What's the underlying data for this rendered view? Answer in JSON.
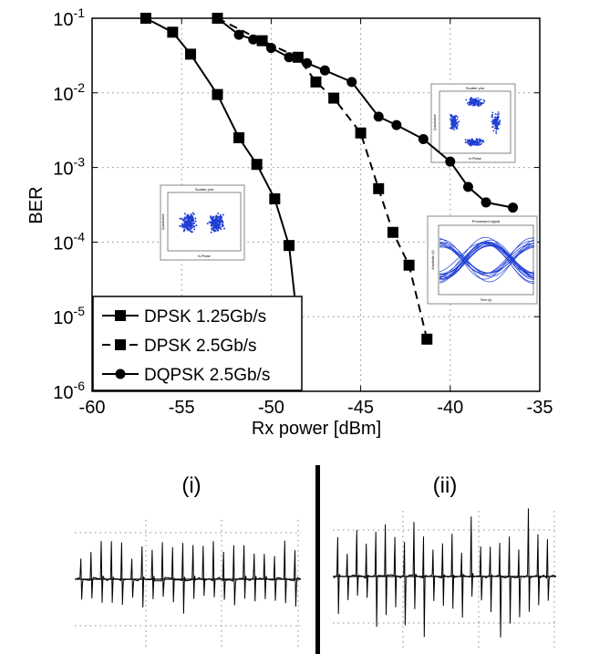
{
  "chart_data": {
    "type": "line",
    "xlabel": "Rx power [dBm]",
    "ylabel": "BER",
    "xlim": [
      -60,
      -35
    ],
    "ylim_log10": [
      -6,
      -1
    ],
    "yscale": "log",
    "grid": true,
    "legend_position": "bottom-left",
    "x_ticks": [
      "-60",
      "-55",
      "-50",
      "-45",
      "-40",
      "-35"
    ],
    "y_tick_exponents": [
      "-1",
      "-2",
      "-3",
      "-4",
      "-5",
      "-6"
    ],
    "y_tick_base": "10",
    "series": [
      {
        "name": "DPSK 1.25Gb/s",
        "line": "solid",
        "marker": "square",
        "x": [
          -57,
          -55.5,
          -54.5,
          -53,
          -51.8,
          -50.8,
          -49.8,
          -49,
          -48.6
        ],
        "y": [
          0.1,
          0.065,
          0.033,
          0.0095,
          0.0025,
          0.0011,
          0.00038,
          9e-05,
          1.2e-05
        ]
      },
      {
        "name": "DPSK 2.5Gb/s",
        "line": "dashed",
        "marker": "square",
        "x": [
          -53,
          -50.5,
          -48.5,
          -47.5,
          -46.5,
          -45,
          -44,
          -43.2,
          -42.3,
          -41.3
        ],
        "y": [
          0.1,
          0.05,
          0.03,
          0.014,
          0.0085,
          0.0029,
          0.00052,
          0.000135,
          4.9e-05,
          5e-06
        ]
      },
      {
        "name": "DQPSK 2.5Gb/s",
        "line": "solid",
        "marker": "circle",
        "x": [
          -53,
          -51.8,
          -51,
          -50,
          -49,
          -48,
          -47,
          -45.5,
          -44,
          -43,
          -41.5,
          -40,
          -39,
          -38,
          -36.5
        ],
        "y": [
          0.1,
          0.06,
          0.052,
          0.04,
          0.03,
          0.025,
          0.02,
          0.014,
          0.0048,
          0.0037,
          0.0024,
          0.0012,
          0.00055,
          0.00034,
          0.00029
        ]
      }
    ]
  },
  "insets": {
    "scatter_two_cluster_title": "Scatter plot",
    "scatter_four_cluster_title": "Scatter plot",
    "eye_title": "Processed signal",
    "scatter_x_label": "In-Phase",
    "scatter_y_label": "Quadrature",
    "eye_x_label": "Time (s)",
    "eye_y_label": "Amplitude (V)",
    "point_color": "#1f3fd4"
  },
  "subfigures": {
    "left_label": "(i)",
    "right_label": "(ii)"
  }
}
